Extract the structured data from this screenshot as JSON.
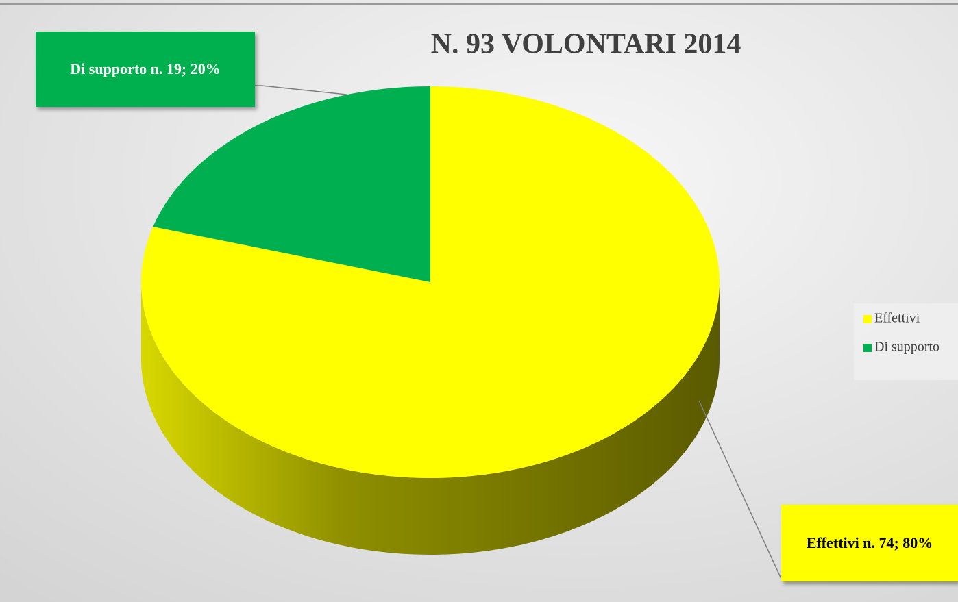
{
  "chart_data": {
    "type": "pie",
    "title": "N. 93 VOLONTARI 2014",
    "categories": [
      "Effettivi",
      "Di supporto"
    ],
    "values": [
      74,
      19
    ],
    "value_labels": [
      "Effettivi n. 74; 80%",
      "Di supporto  n. 19; 20%"
    ],
    "colors": [
      "#ffff00",
      "#00b050"
    ],
    "legend": "right"
  }
}
